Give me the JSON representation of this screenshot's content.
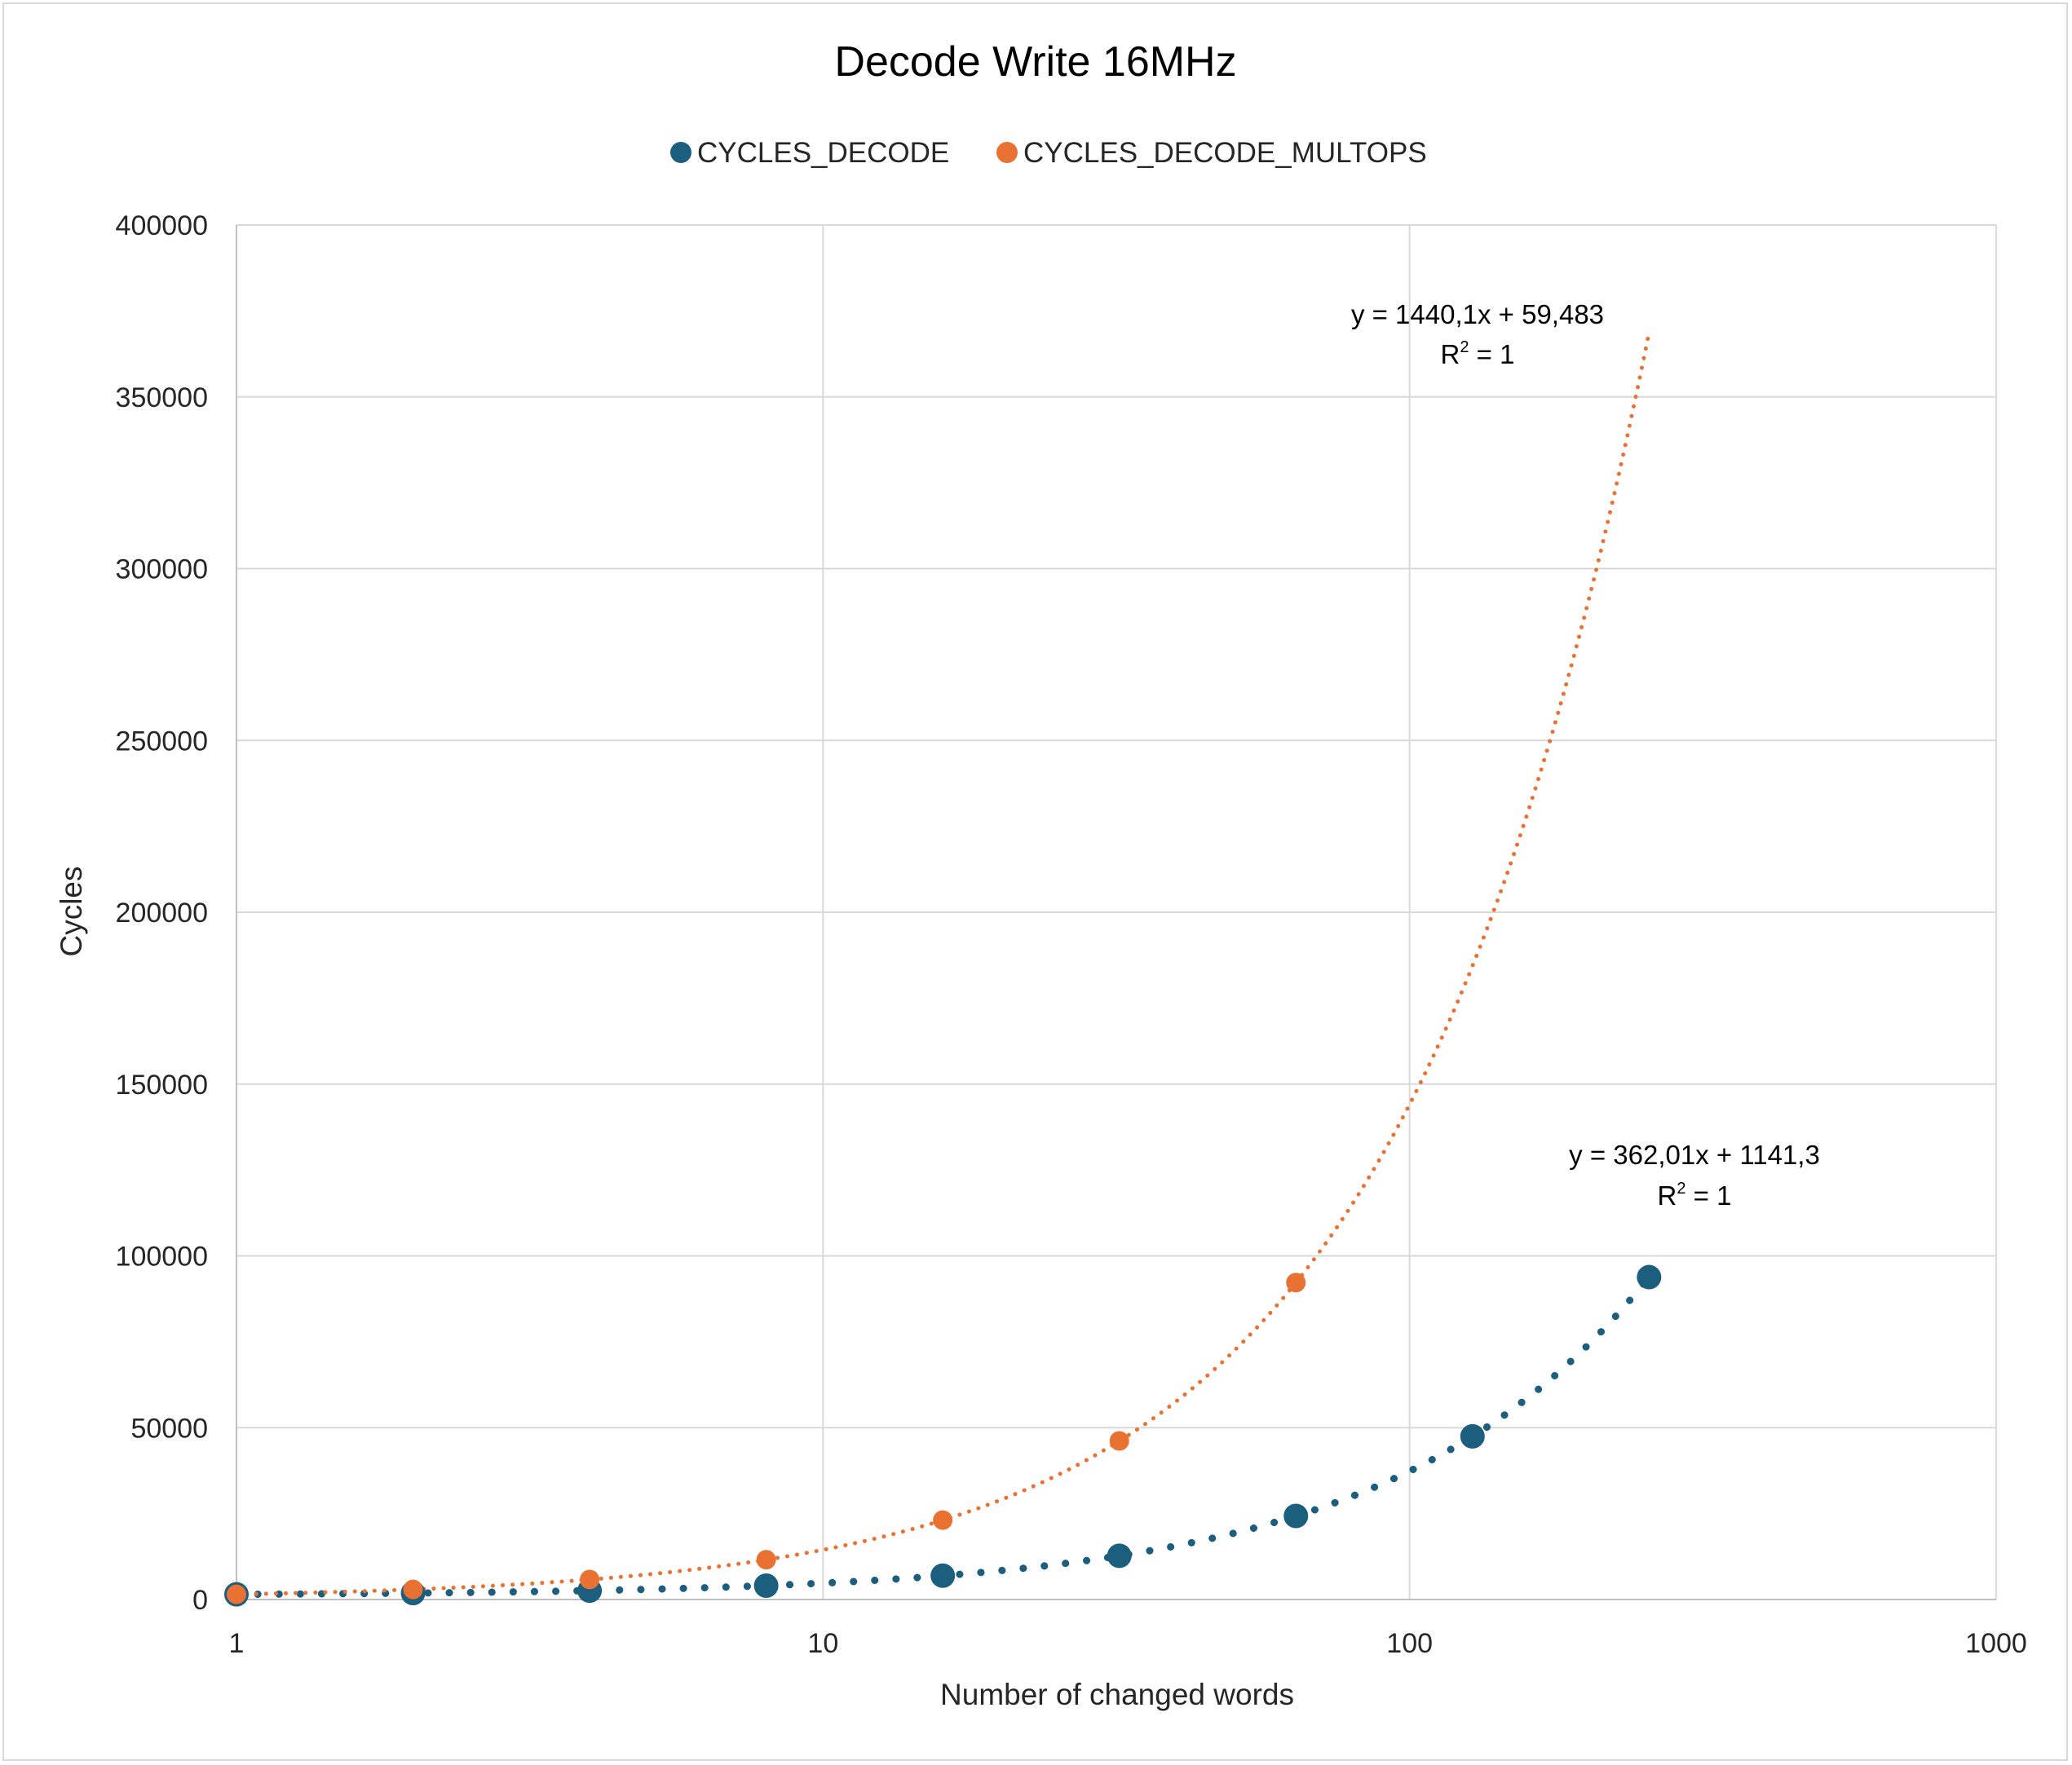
{
  "chart_data": {
    "type": "scatter",
    "title": "Decode Write 16MHz",
    "xlabel": "Number of changed words",
    "ylabel": "Cycles",
    "xscale": "log",
    "xlim": [
      1,
      1000
    ],
    "ylim": [
      0,
      400000
    ],
    "x_ticks": [
      "1",
      "10",
      "100",
      "1000"
    ],
    "y_ticks": [
      "0",
      "50000",
      "100000",
      "150000",
      "200000",
      "250000",
      "300000",
      "350000",
      "400000"
    ],
    "grid": true,
    "legend_position": "top",
    "series": [
      {
        "name": "CYCLES_DECODE",
        "color": "#1b5e7e",
        "x": [
          1,
          2,
          4,
          8,
          16,
          32,
          64,
          128,
          256
        ],
        "y": [
          1503,
          1866,
          2590,
          4037,
          6934,
          12726,
          24311,
          47480,
          93819
        ],
        "trendline": {
          "type": "linear",
          "style": "dotted",
          "equation": "y = 362,01x + 1141,3",
          "r2": "R",
          "r2_sup": "2",
          "r2_rest": " = 1",
          "slope": 362.01,
          "intercept": 1141.3
        }
      },
      {
        "name": "CYCLES_DECODE_MULTOPS",
        "color": "#e97132",
        "x": [
          1,
          2,
          4,
          8,
          16,
          32,
          64
        ],
        "y": [
          1500,
          2940,
          5820,
          11580,
          23100,
          46140,
          92220
        ],
        "trendline": {
          "type": "linear",
          "style": "dotted",
          "equation": "y = 1440,1x + 59,483",
          "r2": "R",
          "r2_sup": "2",
          "r2_rest": " = 1",
          "slope": 1440.1,
          "intercept": 59.483,
          "x_end": 256
        }
      }
    ]
  }
}
